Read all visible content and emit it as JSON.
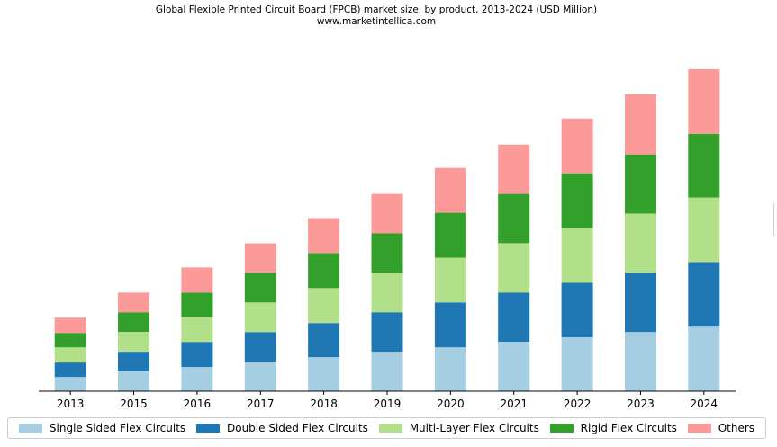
{
  "chart_data": {
    "type": "bar",
    "stacked": true,
    "title": "Global Flexible Printed Circuit Board (FPCB) market size, by product, 2013-2024 (USD Million)",
    "subtitle": "www.marketintellica.com",
    "xlabel": "",
    "ylabel": "",
    "categories": [
      "2013",
      "2015",
      "2016",
      "2017",
      "2018",
      "2019",
      "2020",
      "2021",
      "2022",
      "2023",
      "2024"
    ],
    "series": [
      {
        "name": "Single Sided Flex Circuits",
        "color": "#a6cee3",
        "values": [
          16,
          22,
          27,
          33,
          38,
          44,
          49,
          55,
          60,
          66,
          72
        ]
      },
      {
        "name": "Double Sided Flex Circuits",
        "color": "#1f78b4",
        "values": [
          16,
          22,
          28,
          33,
          38,
          44,
          50,
          55,
          61,
          66,
          72
        ]
      },
      {
        "name": "Multi-Layer Flex Circuits",
        "color": "#b2df8a",
        "values": [
          17,
          22,
          28,
          33,
          39,
          44,
          50,
          55,
          61,
          66,
          72
        ]
      },
      {
        "name": "Rigid Flex Circuits",
        "color": "#33a02c",
        "values": [
          16,
          22,
          27,
          33,
          39,
          44,
          50,
          55,
          61,
          66,
          71
        ]
      },
      {
        "name": "Others",
        "color": "#fb9a99",
        "values": [
          17,
          22,
          28,
          33,
          39,
          44,
          50,
          55,
          61,
          67,
          72
        ]
      }
    ],
    "ylim": [
      0,
      375
    ],
    "legend_position": "bottom",
    "grid": false
  }
}
